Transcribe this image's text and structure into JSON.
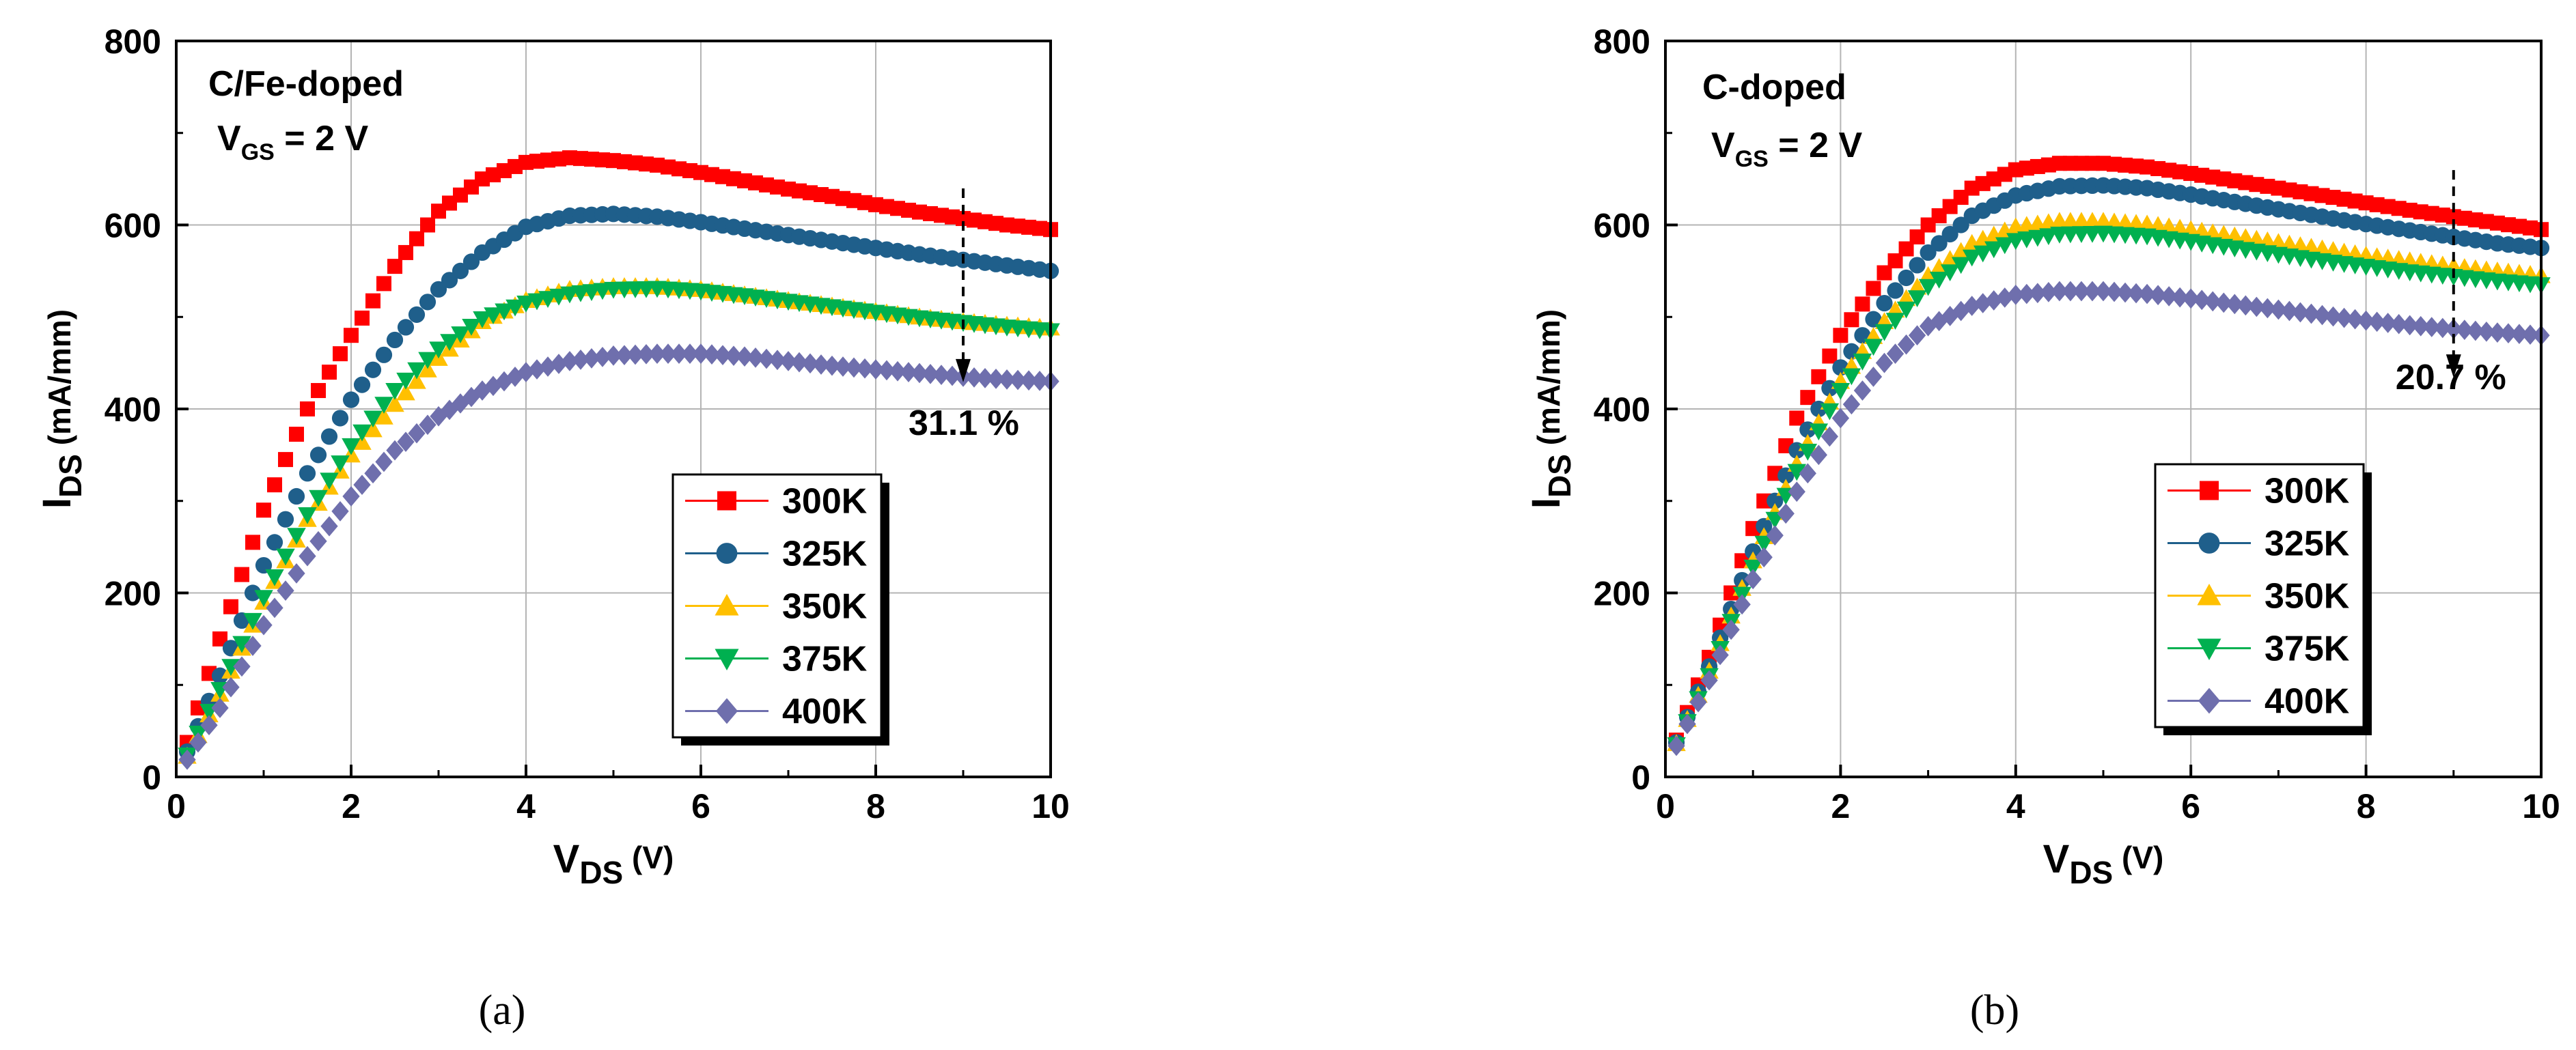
{
  "chart_data": [
    {
      "type": "scatter",
      "panel": "a",
      "caption": "(a)",
      "annotation_title": "C/Fe-doped",
      "annotation_vgs_main": "V",
      "annotation_vgs_sub": "GS",
      "annotation_vgs_value": " = 2 V",
      "drop_label": "31.1 %",
      "drop_at_x": 9,
      "drop_from_y": 610,
      "drop_to_y": 435,
      "xlabel_main": "V",
      "xlabel_sub": "DS",
      "xlabel_unit": " (V)",
      "ylabel_main": "I",
      "ylabel_sub": "DS",
      "ylabel_unit": " (mA/mm)",
      "xlim": [
        0,
        10
      ],
      "ylim": [
        0,
        800
      ],
      "xticks": [
        0,
        2,
        4,
        6,
        8,
        10
      ],
      "yticks": [
        0,
        200,
        400,
        600,
        800
      ],
      "xtick_labels": [
        "0",
        "2",
        "4",
        "6",
        "8",
        "10"
      ],
      "ytick_labels": [
        "0",
        "200",
        "400",
        "600",
        "800"
      ],
      "grid": true,
      "legend_position": "bottom-right",
      "series": [
        {
          "name": "300K",
          "color": "#ff0000",
          "marker": "square",
          "x": [
            0,
            0.5,
            1,
            1.5,
            2,
            2.5,
            3,
            3.5,
            4,
            4.5,
            5,
            5.5,
            6,
            6.5,
            7,
            7.5,
            8,
            8.5,
            9,
            9.5,
            10
          ],
          "y": [
            0,
            150,
            290,
            400,
            480,
            555,
            615,
            650,
            668,
            673,
            670,
            665,
            657,
            648,
            639,
            631,
            622,
            614,
            607,
            600,
            595
          ]
        },
        {
          "name": "325K",
          "color": "#1f5f8b",
          "marker": "circle",
          "x": [
            0,
            0.5,
            1,
            1.5,
            2,
            2.5,
            3,
            3.5,
            4,
            4.5,
            5,
            5.5,
            6,
            6.5,
            7,
            7.5,
            8,
            8.5,
            9,
            9.5,
            10
          ],
          "y": [
            0,
            110,
            230,
            330,
            410,
            475,
            530,
            570,
            598,
            610,
            612,
            609,
            603,
            596,
            589,
            582,
            575,
            568,
            562,
            556,
            550
          ]
        },
        {
          "name": "350K",
          "color": "#ffc000",
          "marker": "triangle-up",
          "x": [
            0,
            0.5,
            1,
            1.5,
            2,
            2.5,
            3,
            3.5,
            4,
            4.5,
            5,
            5.5,
            6,
            6.5,
            7,
            7.5,
            8,
            8.5,
            9,
            9.5,
            10
          ],
          "y": [
            0,
            90,
            190,
            280,
            350,
            405,
            455,
            495,
            518,
            530,
            533,
            533,
            530,
            524,
            518,
            512,
            506,
            500,
            495,
            491,
            488
          ]
        },
        {
          "name": "375K",
          "color": "#00b050",
          "marker": "triangle-down",
          "x": [
            0,
            0.5,
            1,
            1.5,
            2,
            2.5,
            3,
            3.5,
            4,
            4.5,
            5,
            5.5,
            6,
            6.5,
            7,
            7.5,
            8,
            8.5,
            9,
            9.5,
            10
          ],
          "y": [
            0,
            95,
            195,
            285,
            360,
            420,
            465,
            498,
            515,
            525,
            530,
            531,
            528,
            523,
            517,
            511,
            505,
            499,
            494,
            489,
            485
          ]
        },
        {
          "name": "400K",
          "color": "#6f6fad",
          "marker": "diamond",
          "x": [
            0,
            0.5,
            1,
            1.5,
            2,
            2.5,
            3,
            3.5,
            4,
            4.5,
            5,
            5.5,
            6,
            6.5,
            7,
            7.5,
            8,
            8.5,
            9,
            9.5,
            10
          ],
          "y": [
            0,
            75,
            165,
            240,
            305,
            355,
            392,
            420,
            440,
            452,
            458,
            460,
            460,
            457,
            452,
            447,
            443,
            439,
            435,
            432,
            430
          ]
        }
      ]
    },
    {
      "type": "scatter",
      "panel": "b",
      "caption": "(b)",
      "annotation_title": "C-doped",
      "annotation_vgs_main": "V",
      "annotation_vgs_sub": "GS",
      "annotation_vgs_value": " = 2 V",
      "drop_label": "20.7 %",
      "drop_at_x": 9,
      "drop_from_y": 630,
      "drop_to_y": 440,
      "xlabel_main": "V",
      "xlabel_sub": "DS",
      "xlabel_unit": " (V)",
      "ylabel_main": "I",
      "ylabel_sub": "DS",
      "ylabel_unit": " (mA/mm)",
      "xlim": [
        0,
        10
      ],
      "ylim": [
        0,
        800
      ],
      "xticks": [
        0,
        2,
        4,
        6,
        8,
        10
      ],
      "yticks": [
        0,
        200,
        400,
        600,
        800
      ],
      "xtick_labels": [
        "0",
        "2",
        "4",
        "6",
        "8",
        "10"
      ],
      "ytick_labels": [
        "0",
        "200",
        "400",
        "600",
        "800"
      ],
      "grid": true,
      "legend_position": "bottom-right",
      "series": [
        {
          "name": "300K",
          "color": "#ff0000",
          "marker": "square",
          "x": [
            0,
            0.5,
            1,
            1.5,
            2,
            2.5,
            3,
            3.5,
            4,
            4.5,
            5,
            5.5,
            6,
            6.5,
            7,
            7.5,
            8,
            8.5,
            9,
            9.5,
            10
          ],
          "y": [
            10,
            130,
            270,
            390,
            480,
            548,
            600,
            640,
            660,
            667,
            667,
            663,
            656,
            648,
            640,
            632,
            624,
            616,
            609,
            602,
            595
          ]
        },
        {
          "name": "325K",
          "color": "#1f5f8b",
          "marker": "circle",
          "x": [
            0,
            0.5,
            1,
            1.5,
            2,
            2.5,
            3,
            3.5,
            4,
            4.5,
            5,
            5.5,
            6,
            6.5,
            7,
            7.5,
            8,
            8.5,
            9,
            9.5,
            10
          ],
          "y": [
            10,
            120,
            245,
            355,
            445,
            515,
            570,
            610,
            632,
            642,
            643,
            640,
            633,
            625,
            617,
            609,
            601,
            594,
            587,
            580,
            575
          ]
        },
        {
          "name": "350K",
          "color": "#ffc000",
          "marker": "triangle-up",
          "x": [
            0,
            0.5,
            1,
            1.5,
            2,
            2.5,
            3,
            3.5,
            4,
            4.5,
            5,
            5.5,
            6,
            6.5,
            7,
            7.5,
            8,
            8.5,
            9,
            9.5,
            10
          ],
          "y": [
            10,
            115,
            235,
            340,
            430,
            495,
            545,
            580,
            598,
            604,
            604,
            601,
            595,
            588,
            581,
            574,
            567,
            561,
            555,
            550,
            545
          ]
        },
        {
          "name": "375K",
          "color": "#00b050",
          "marker": "triangle-down",
          "x": [
            0,
            0.5,
            1,
            1.5,
            2,
            2.5,
            3,
            3.5,
            4,
            4.5,
            5,
            5.5,
            6,
            6.5,
            7,
            7.5,
            8,
            8.5,
            9,
            9.5,
            10
          ],
          "y": [
            10,
            110,
            228,
            332,
            420,
            484,
            533,
            565,
            583,
            590,
            591,
            588,
            582,
            575,
            568,
            561,
            555,
            549,
            544,
            539,
            535
          ]
        },
        {
          "name": "400K",
          "color": "#6f6fad",
          "marker": "diamond",
          "x": [
            0,
            0.5,
            1,
            1.5,
            2,
            2.5,
            3,
            3.5,
            4,
            4.5,
            5,
            5.5,
            6,
            6.5,
            7,
            7.5,
            8,
            8.5,
            9,
            9.5,
            10
          ],
          "y": [
            10,
            105,
            215,
            310,
            390,
            450,
            490,
            512,
            524,
            528,
            528,
            525,
            520,
            514,
            508,
            502,
            496,
            491,
            487,
            483,
            480
          ]
        }
      ]
    }
  ]
}
